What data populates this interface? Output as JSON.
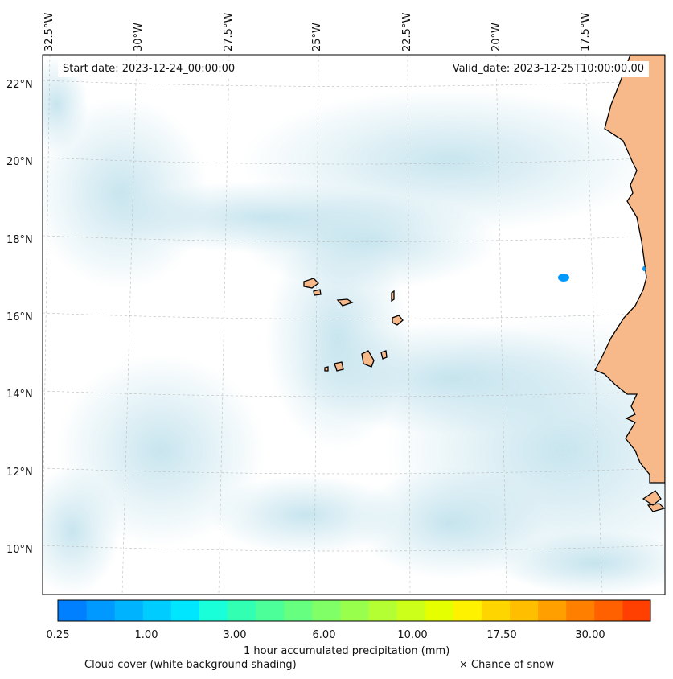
{
  "map": {
    "start_date": "Start date: 2023-12-24_00:00:00",
    "valid_date": "Valid_date: 2023-12-25T10:00:00.00",
    "lon_labels": [
      "32.5°W",
      "30°W",
      "27.5°W",
      "25°W",
      "22.5°W",
      "20°W",
      "17.5°W"
    ],
    "lat_labels": [
      "22°N",
      "20°N",
      "18°N",
      "16°N",
      "14°N",
      "12°N",
      "10°N"
    ],
    "land_color": "#f7b98a",
    "cloud_color": "#a9d6e5",
    "ocean_color": "#ffffff"
  },
  "colorbar": {
    "colors": [
      "#0080ff",
      "#0099ff",
      "#00b3ff",
      "#00ccff",
      "#00e6ff",
      "#19ffd9",
      "#33ffb3",
      "#4dff99",
      "#66ff80",
      "#80ff66",
      "#99ff4d",
      "#b3ff33",
      "#ccff1a",
      "#e6ff00",
      "#fff200",
      "#ffd500",
      "#ffbf00",
      "#ff9f00",
      "#ff8000",
      "#ff6000",
      "#ff4000"
    ],
    "tick_labels": [
      "0.25",
      "1.00",
      "3.00",
      "6.00",
      "10.00",
      "17.50",
      "30.00"
    ],
    "label": "1 hour accumulated precipitation (mm)"
  },
  "legend": {
    "cloud_cover": "Cloud cover (white background shading)",
    "snow": "× Chance of snow"
  }
}
